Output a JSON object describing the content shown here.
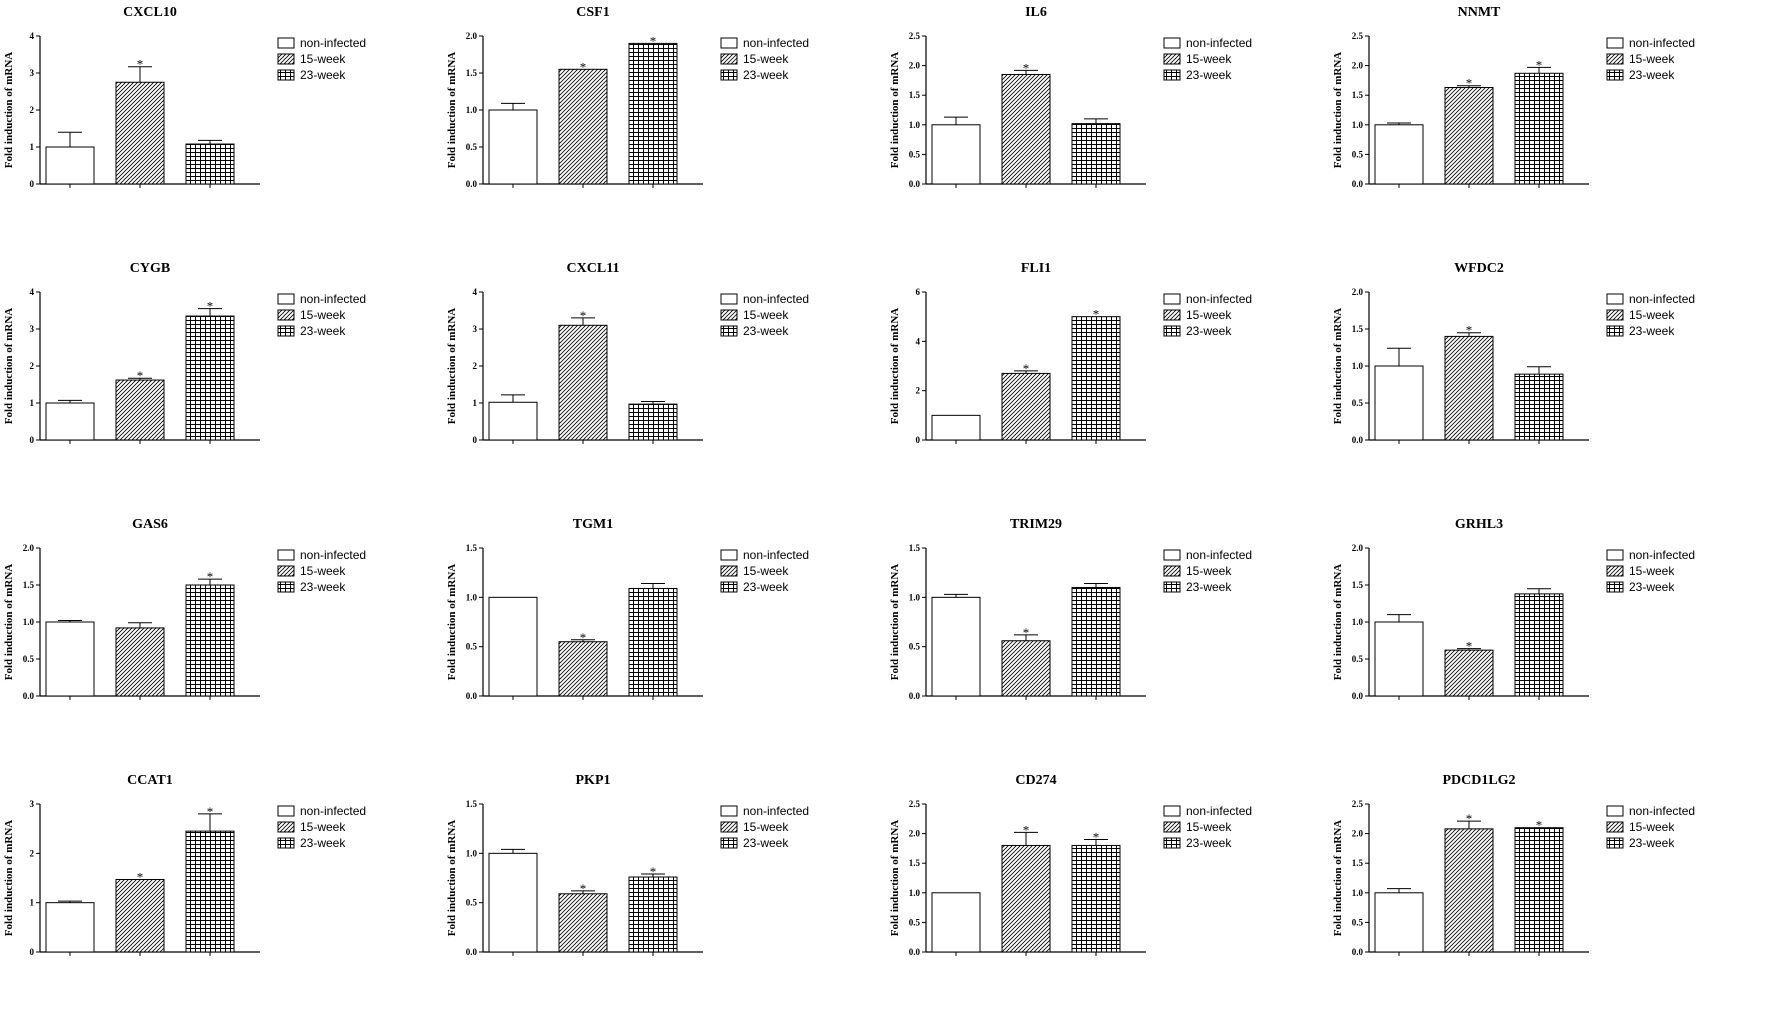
{
  "chart_data": [
    {
      "type": "bar",
      "title": "CXCL10",
      "ylabel": "Fold induction of mRNA",
      "ylim": [
        0,
        4
      ],
      "yticks": [
        "0",
        "1",
        "2",
        "3",
        "4"
      ],
      "series": [
        {
          "name": "non-infected",
          "value": 1.0,
          "err": 0.4,
          "sig": ""
        },
        {
          "name": "15-week",
          "value": 2.75,
          "err": 0.42,
          "sig": "*"
        },
        {
          "name": "23-week",
          "value": 1.08,
          "err": 0.1,
          "sig": ""
        }
      ]
    },
    {
      "type": "bar",
      "title": "CSF1",
      "ylabel": "Fold induction of mRNA",
      "ylim": [
        0,
        2
      ],
      "yticks": [
        "0.0",
        "0.5",
        "1.0",
        "1.5",
        "2.0"
      ],
      "series": [
        {
          "name": "non-infected",
          "value": 1.0,
          "err": 0.09,
          "sig": ""
        },
        {
          "name": "15-week",
          "value": 1.55,
          "err": 0.0,
          "sig": "*"
        },
        {
          "name": "23-week",
          "value": 1.9,
          "err": 0.0,
          "sig": "*"
        }
      ]
    },
    {
      "type": "bar",
      "title": "IL6",
      "ylabel": "Fold induction of mRNA",
      "ylim": [
        0,
        2.5
      ],
      "yticks": [
        "0.0",
        "0.5",
        "1.0",
        "1.5",
        "2.0",
        "2.5"
      ],
      "series": [
        {
          "name": "non-infected",
          "value": 1.0,
          "err": 0.13,
          "sig": ""
        },
        {
          "name": "15-week",
          "value": 1.85,
          "err": 0.07,
          "sig": "*"
        },
        {
          "name": "23-week",
          "value": 1.02,
          "err": 0.08,
          "sig": ""
        }
      ]
    },
    {
      "type": "bar",
      "title": "NNMT",
      "ylabel": "Fold induction of mRNA",
      "ylim": [
        0,
        2.5
      ],
      "yticks": [
        "0.0",
        "0.5",
        "1.0",
        "1.5",
        "2.0",
        "2.5"
      ],
      "series": [
        {
          "name": "non-infected",
          "value": 1.0,
          "err": 0.03,
          "sig": ""
        },
        {
          "name": "15-week",
          "value": 1.63,
          "err": 0.03,
          "sig": "*"
        },
        {
          "name": "23-week",
          "value": 1.87,
          "err": 0.1,
          "sig": "*"
        }
      ]
    },
    {
      "type": "bar",
      "title": "CYGB",
      "ylabel": "Fold induction of mRNA",
      "ylim": [
        0,
        4
      ],
      "yticks": [
        "0",
        "1",
        "2",
        "3",
        "4"
      ],
      "series": [
        {
          "name": "non-infected",
          "value": 1.0,
          "err": 0.07,
          "sig": ""
        },
        {
          "name": "15-week",
          "value": 1.62,
          "err": 0.05,
          "sig": "*"
        },
        {
          "name": "23-week",
          "value": 3.35,
          "err": 0.2,
          "sig": "*"
        }
      ]
    },
    {
      "type": "bar",
      "title": "CXCL11",
      "ylabel": "Fold induction of mRNA",
      "ylim": [
        0,
        4
      ],
      "yticks": [
        "0",
        "1",
        "2",
        "3",
        "4"
      ],
      "series": [
        {
          "name": "non-infected",
          "value": 1.02,
          "err": 0.2,
          "sig": ""
        },
        {
          "name": "15-week",
          "value": 3.1,
          "err": 0.2,
          "sig": "*"
        },
        {
          "name": "23-week",
          "value": 0.97,
          "err": 0.07,
          "sig": ""
        }
      ]
    },
    {
      "type": "bar",
      "title": "FLI1",
      "ylabel": "Fold induction of mRNA",
      "ylim": [
        0,
        6
      ],
      "yticks": [
        "0",
        "2",
        "4",
        "6"
      ],
      "series": [
        {
          "name": "non-infected",
          "value": 1.0,
          "err": 0.0,
          "sig": ""
        },
        {
          "name": "15-week",
          "value": 2.7,
          "err": 0.1,
          "sig": "*"
        },
        {
          "name": "23-week",
          "value": 5.0,
          "err": 0.0,
          "sig": "*"
        }
      ]
    },
    {
      "type": "bar",
      "title": "WFDC2",
      "ylabel": "Fold induction of mRNA",
      "ylim": [
        0,
        2
      ],
      "yticks": [
        "0.0",
        "0.5",
        "1.0",
        "1.5",
        "2.0"
      ],
      "series": [
        {
          "name": "non-infected",
          "value": 1.0,
          "err": 0.24,
          "sig": ""
        },
        {
          "name": "15-week",
          "value": 1.4,
          "err": 0.05,
          "sig": "*"
        },
        {
          "name": "23-week",
          "value": 0.89,
          "err": 0.1,
          "sig": ""
        }
      ]
    },
    {
      "type": "bar",
      "title": "GAS6",
      "ylabel": "Fold induction of mRNA",
      "ylim": [
        0,
        2
      ],
      "yticks": [
        "0.0",
        "0.5",
        "1.0",
        "1.5",
        "2.0"
      ],
      "series": [
        {
          "name": "non-infected",
          "value": 1.0,
          "err": 0.02,
          "sig": ""
        },
        {
          "name": "15-week",
          "value": 0.92,
          "err": 0.07,
          "sig": ""
        },
        {
          "name": "23-week",
          "value": 1.5,
          "err": 0.08,
          "sig": "*"
        }
      ]
    },
    {
      "type": "bar",
      "title": "TGM1",
      "ylabel": "Fold induction of mRNA",
      "ylim": [
        0,
        1.5
      ],
      "yticks": [
        "0.0",
        "0.5",
        "1.0",
        "1.5"
      ],
      "series": [
        {
          "name": "non-infected",
          "value": 1.0,
          "err": 0.0,
          "sig": ""
        },
        {
          "name": "15-week",
          "value": 0.55,
          "err": 0.02,
          "sig": "*"
        },
        {
          "name": "23-week",
          "value": 1.09,
          "err": 0.05,
          "sig": ""
        }
      ]
    },
    {
      "type": "bar",
      "title": "TRIM29",
      "ylabel": "Fold induction of mRNA",
      "ylim": [
        0,
        1.5
      ],
      "yticks": [
        "0.0",
        "0.5",
        "1.0",
        "1.5"
      ],
      "series": [
        {
          "name": "non-infected",
          "value": 1.0,
          "err": 0.03,
          "sig": ""
        },
        {
          "name": "15-week",
          "value": 0.56,
          "err": 0.06,
          "sig": "*"
        },
        {
          "name": "23-week",
          "value": 1.1,
          "err": 0.04,
          "sig": ""
        }
      ]
    },
    {
      "type": "bar",
      "title": "GRHL3",
      "ylabel": "Fold induction of mRNA",
      "ylim": [
        0,
        2
      ],
      "yticks": [
        "0.0",
        "0.5",
        "1.0",
        "1.5",
        "2.0"
      ],
      "series": [
        {
          "name": "non-infected",
          "value": 1.0,
          "err": 0.1,
          "sig": ""
        },
        {
          "name": "15-week",
          "value": 0.62,
          "err": 0.02,
          "sig": "*"
        },
        {
          "name": "23-week",
          "value": 1.38,
          "err": 0.07,
          "sig": ""
        }
      ]
    },
    {
      "type": "bar",
      "title": "CCAT1",
      "ylabel": "Fold induction of mRNA",
      "ylim": [
        0,
        3
      ],
      "yticks": [
        "0",
        "1",
        "2",
        "3"
      ],
      "series": [
        {
          "name": "non-infected",
          "value": 1.0,
          "err": 0.03,
          "sig": ""
        },
        {
          "name": "15-week",
          "value": 1.47,
          "err": 0.0,
          "sig": "*"
        },
        {
          "name": "23-week",
          "value": 2.45,
          "err": 0.35,
          "sig": "*"
        }
      ]
    },
    {
      "type": "bar",
      "title": "PKP1",
      "ylabel": "Fold induction of mRNA",
      "ylim": [
        0,
        1.5
      ],
      "yticks": [
        "0.0",
        "0.5",
        "1.0",
        "1.5"
      ],
      "series": [
        {
          "name": "non-infected",
          "value": 1.0,
          "err": 0.04,
          "sig": ""
        },
        {
          "name": "15-week",
          "value": 0.59,
          "err": 0.03,
          "sig": "*"
        },
        {
          "name": "23-week",
          "value": 0.76,
          "err": 0.03,
          "sig": "*"
        }
      ]
    },
    {
      "type": "bar",
      "title": "CD274",
      "ylabel": "Fold induction of mRNA",
      "ylim": [
        0,
        2.5
      ],
      "yticks": [
        "0.0",
        "0.5",
        "1.0",
        "1.5",
        "2.0",
        "2.5"
      ],
      "series": [
        {
          "name": "non-infected",
          "value": 1.0,
          "err": 0.0,
          "sig": ""
        },
        {
          "name": "15-week",
          "value": 1.8,
          "err": 0.22,
          "sig": "*"
        },
        {
          "name": "23-week",
          "value": 1.8,
          "err": 0.1,
          "sig": "*"
        }
      ]
    },
    {
      "type": "bar",
      "title": "PDCD1LG2",
      "ylabel": "Fold induction of mRNA",
      "ylim": [
        0,
        2.5
      ],
      "yticks": [
        "0.0",
        "0.5",
        "1.0",
        "1.5",
        "2.0",
        "2.5"
      ],
      "series": [
        {
          "name": "non-infected",
          "value": 1.0,
          "err": 0.07,
          "sig": ""
        },
        {
          "name": "15-week",
          "value": 2.08,
          "err": 0.13,
          "sig": "*"
        },
        {
          "name": "23-week",
          "value": 2.1,
          "err": 0.0,
          "sig": "*"
        }
      ]
    }
  ],
  "legend": [
    "non-infected",
    "15-week",
    "23-week"
  ]
}
